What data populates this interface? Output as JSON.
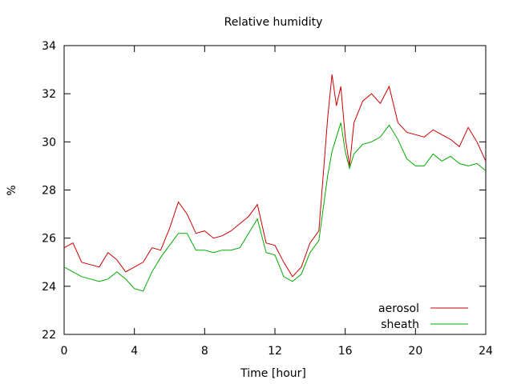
{
  "chart_data": {
    "type": "line",
    "title": "Relative humidity",
    "xlabel": "Time [hour]",
    "ylabel": "%",
    "xlim": [
      0,
      24
    ],
    "ylim": [
      22,
      34
    ],
    "xticks": [
      0,
      4,
      8,
      12,
      16,
      20,
      24
    ],
    "yticks": [
      22,
      24,
      26,
      28,
      30,
      32,
      34
    ],
    "grid": false,
    "legend_position": "bottom-right",
    "x": [
      0,
      0.5,
      1,
      1.5,
      2,
      2.5,
      3,
      3.5,
      4,
      4.5,
      5,
      5.5,
      6,
      6.5,
      7,
      7.5,
      8,
      8.5,
      9,
      9.5,
      10,
      10.5,
      11,
      11.5,
      12,
      12.5,
      13,
      13.5,
      14,
      14.5,
      15,
      15.25,
      15.5,
      15.75,
      16,
      16.25,
      16.5,
      17,
      17.5,
      18,
      18.5,
      19,
      19.5,
      20,
      20.5,
      21,
      21.5,
      22,
      22.5,
      23,
      23.5,
      24
    ],
    "series": [
      {
        "name": "aerosol",
        "color": "#cc0000",
        "values": [
          25.6,
          25.8,
          25.0,
          24.9,
          24.8,
          25.4,
          25.1,
          24.6,
          24.8,
          25.0,
          25.6,
          25.5,
          26.4,
          27.5,
          27.0,
          26.2,
          26.3,
          26.0,
          26.1,
          26.3,
          26.6,
          26.9,
          27.4,
          25.8,
          25.7,
          25.0,
          24.4,
          24.8,
          25.8,
          26.3,
          31.0,
          32.8,
          31.5,
          32.3,
          30.2,
          29.0,
          30.8,
          31.7,
          32.0,
          31.6,
          32.3,
          30.8,
          30.4,
          30.3,
          30.2,
          30.5,
          30.3,
          30.1,
          29.8,
          30.6,
          30.0,
          29.2
        ]
      },
      {
        "name": "sheath",
        "color": "#00aa00",
        "values": [
          24.8,
          24.6,
          24.4,
          24.3,
          24.2,
          24.3,
          24.6,
          24.3,
          23.9,
          23.8,
          24.6,
          25.2,
          25.7,
          26.2,
          26.2,
          25.5,
          25.5,
          25.4,
          25.5,
          25.5,
          25.6,
          26.2,
          26.8,
          25.4,
          25.3,
          24.4,
          24.2,
          24.5,
          25.4,
          25.9,
          28.6,
          29.6,
          30.2,
          30.8,
          29.6,
          28.9,
          29.5,
          29.9,
          30.0,
          30.2,
          30.7,
          30.1,
          29.3,
          29.0,
          29.0,
          29.5,
          29.2,
          29.4,
          29.1,
          29.0,
          29.1,
          28.8
        ]
      }
    ]
  }
}
